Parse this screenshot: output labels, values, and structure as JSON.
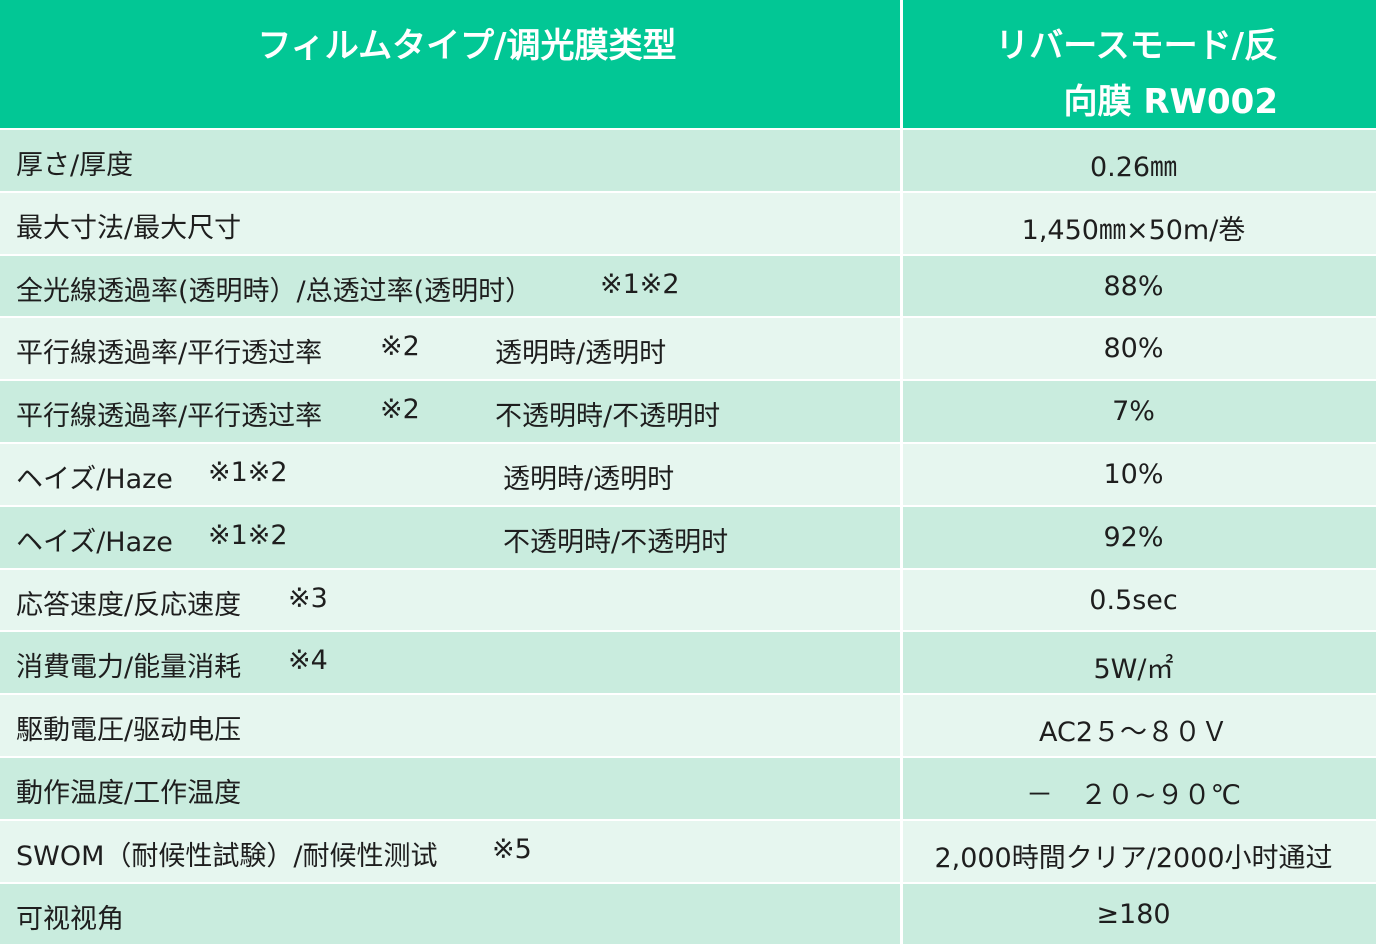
{
  "header": {
    "left": "フィルムタイプ/调光膜类型",
    "right_line1": "リバースモード/反",
    "right_line2": "向膜 RW002"
  },
  "rows": [
    {
      "label": "厚さ/厚度",
      "value": "0.26㎜"
    },
    {
      "label": "最大寸法/最大尺寸",
      "value": "1,450㎜×50m/巻"
    },
    {
      "label": "全光線透過率(透明時）/总透过率(透明时）",
      "note": "※1※2",
      "value": "88%"
    },
    {
      "label": "平行線透過率/平行透过率",
      "note": "※2",
      "sub": "透明時/透明时",
      "value": "80%"
    },
    {
      "label": "平行線透過率/平行透过率",
      "note": "※2",
      "sub": "不透明時/不透明时",
      "value": "7%"
    },
    {
      "label": "ヘイズ/Haze",
      "note": "※1※2",
      "sub": "透明時/透明时",
      "value": "10%"
    },
    {
      "label": "ヘイズ/Haze",
      "note": "※1※2",
      "sub": "不透明時/不透明时",
      "value": "92%"
    },
    {
      "label": "応答速度/反応速度",
      "note": "※3",
      "value": "0.5sec"
    },
    {
      "label": "消費電力/能量消耗",
      "note": "※4",
      "value": "5W/㎡"
    },
    {
      "label": "駆動電圧/驱动电压",
      "value": "AC2５～８０Ｖ"
    },
    {
      "label": "動作温度/工作温度",
      "value": "－　２０~９０℃"
    },
    {
      "label": "SWOM（耐候性試験）/耐候性测试",
      "note": "※5",
      "value": "2,000時間クリア/2000小时通过"
    },
    {
      "label": "可视视角",
      "value": "≥180"
    }
  ],
  "colors": {
    "header_bg": "#02c795",
    "row_dark": "#c9ecde",
    "row_light": "#e6f6ef",
    "header_text": "#ffffff"
  }
}
